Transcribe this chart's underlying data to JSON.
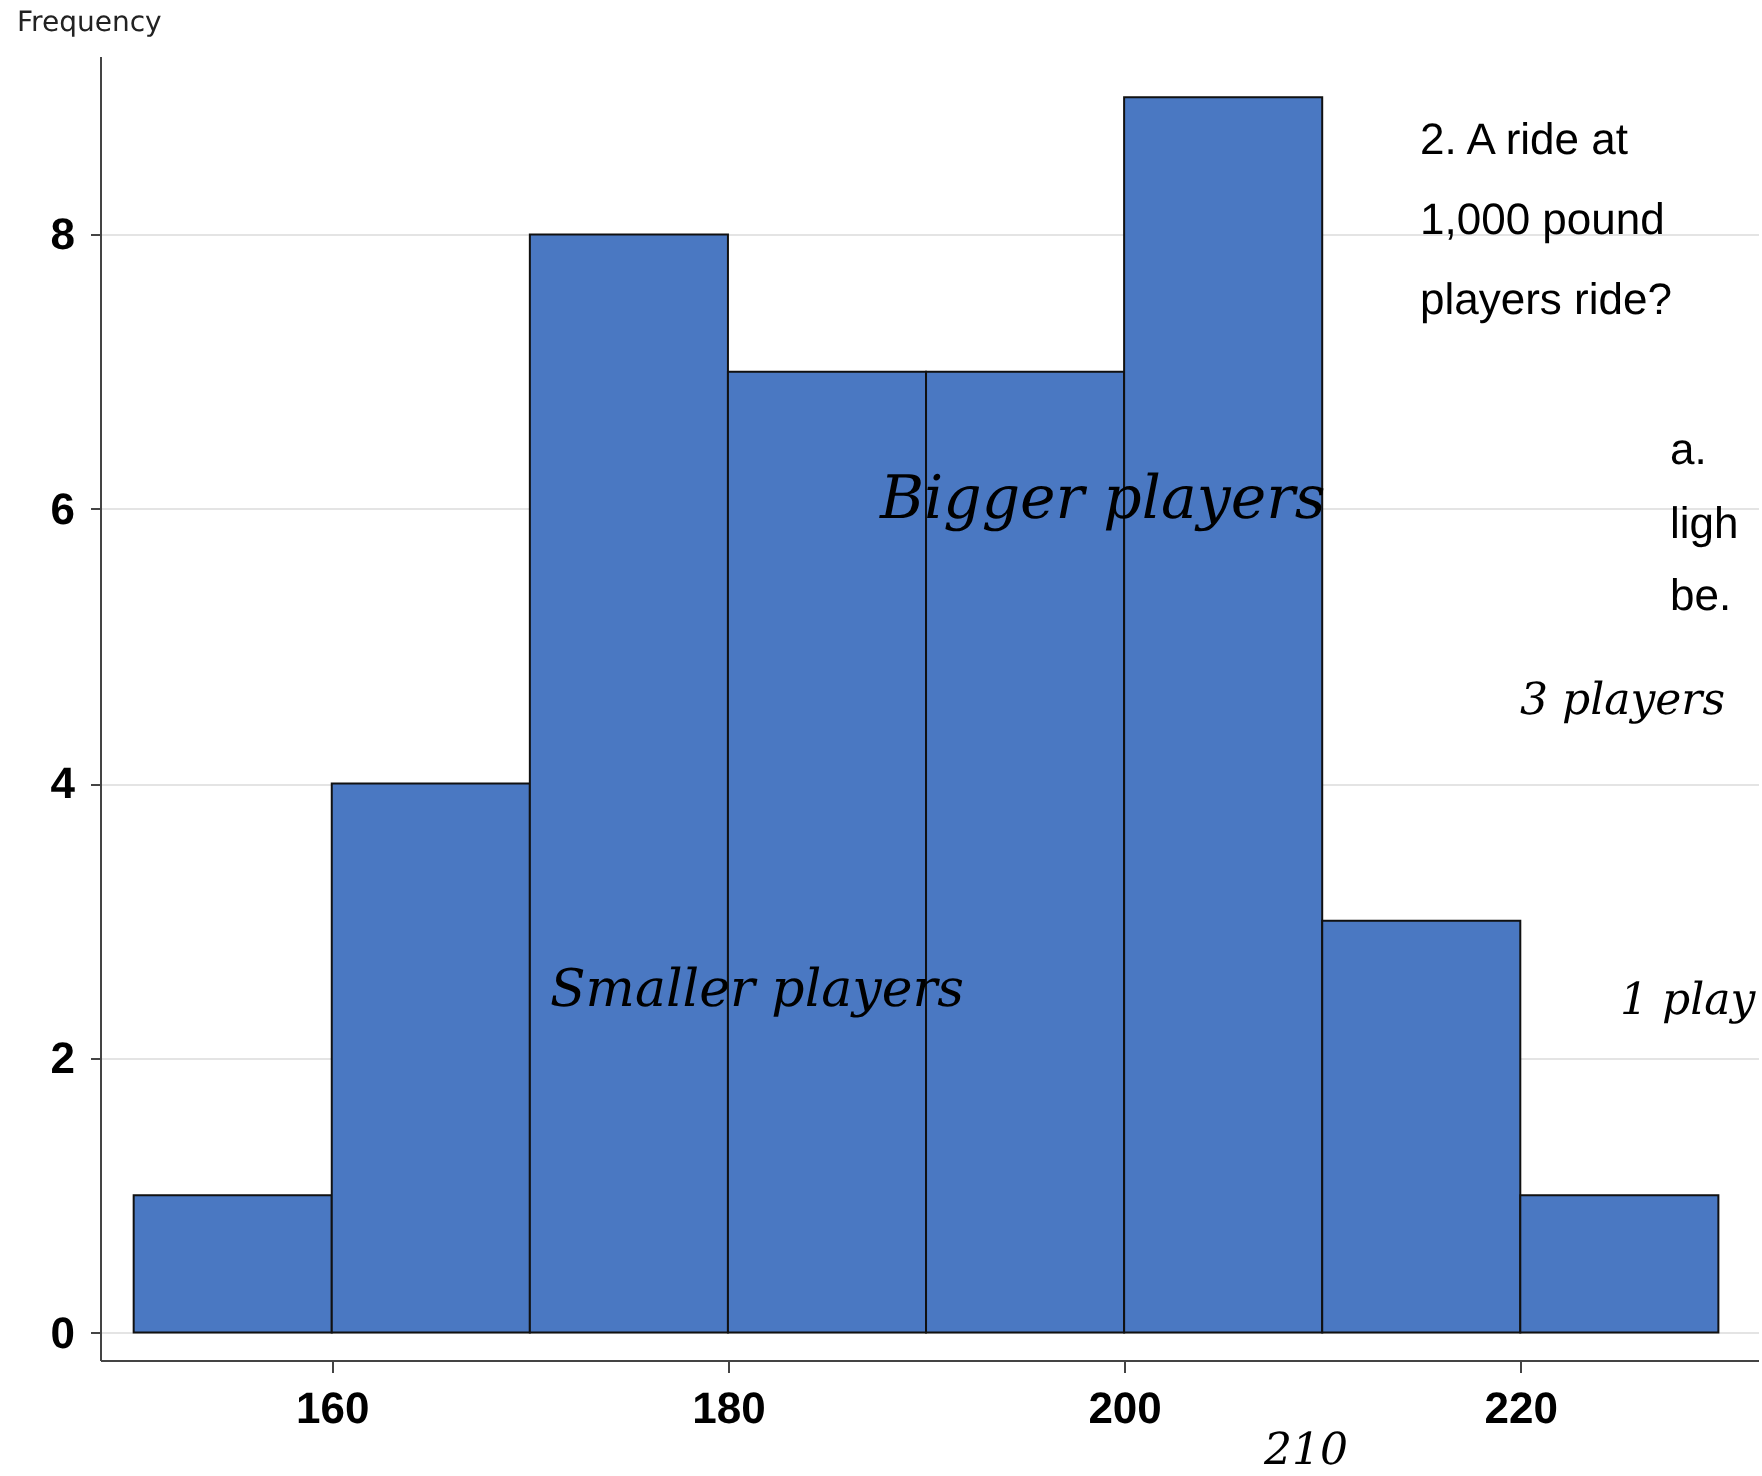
{
  "chart_data": {
    "type": "histogram",
    "ylabel": "Frequency",
    "bins": [
      150,
      160,
      170,
      180,
      190,
      200,
      210,
      220,
      230
    ],
    "values": [
      1,
      4,
      8,
      7,
      7,
      9,
      3,
      1
    ],
    "color": "#4a78c2",
    "xlim": [
      148.3,
      232
    ],
    "ylim": [
      -0.2,
      9.3
    ],
    "xticks": [
      160,
      180,
      200,
      220
    ],
    "yticks": [
      0,
      2,
      4,
      6,
      8
    ],
    "grid": "y",
    "annotations": [
      "2.  A ride at",
      "1,000 pound",
      "players ride?",
      "a.",
      "ligh",
      "be.",
      "Bigger players",
      "Smaller players",
      "3 players",
      "1 play",
      "210"
    ]
  }
}
